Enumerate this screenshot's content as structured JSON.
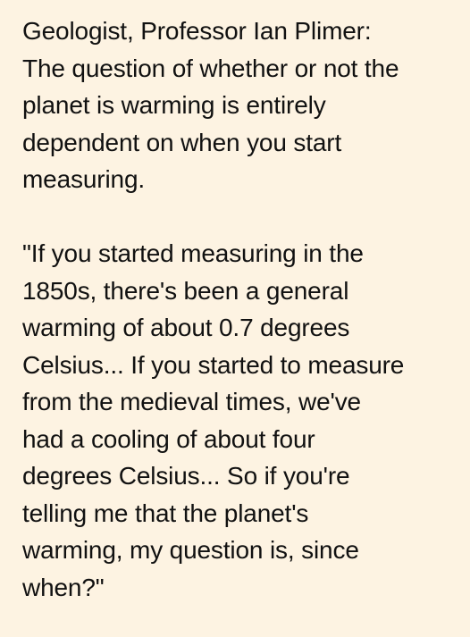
{
  "paragraphs": [
    {
      "lines": [
        "Geologist, Professor Ian Plimer:",
        "The question of whether or not the",
        "planet is warming is entirely",
        "dependent on when you start",
        "measuring."
      ]
    },
    {
      "lines": [
        "\"If you started measuring in the",
        "1850s, there's been a general",
        "warming of about 0.7 degrees",
        "Celsius... If you started to measure",
        "from the medieval times, we've",
        "had a cooling of about four",
        "degrees Celsius... So if you're",
        "telling me that the planet's",
        "warming, my question is, since",
        "when?\""
      ]
    }
  ]
}
